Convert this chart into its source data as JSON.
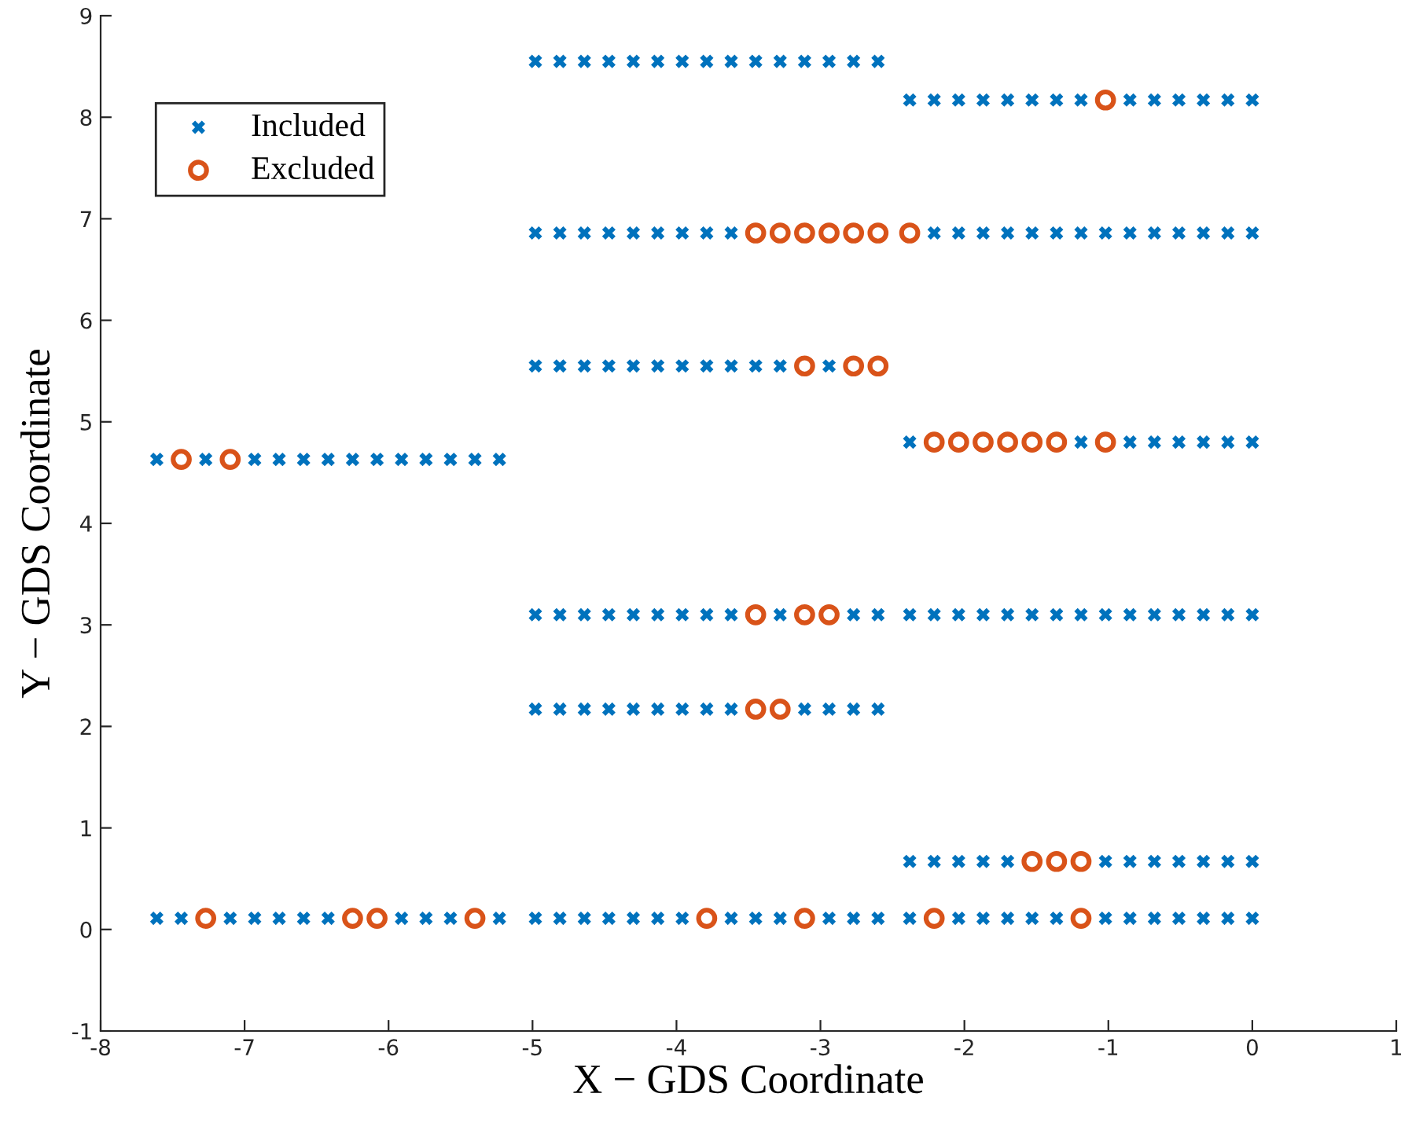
{
  "chart_data": {
    "type": "scatter",
    "xlabel": "X − GDS Coordinate",
    "ylabel": "Y − GDS Coordinate",
    "xlim": [
      -8,
      1
    ],
    "xticks": [
      -8,
      -7,
      -6,
      -5,
      -4,
      -3,
      -2,
      -1,
      0,
      1
    ],
    "ylim": [
      -1,
      9
    ],
    "yticks": [
      -1,
      0,
      1,
      2,
      3,
      4,
      5,
      6,
      7,
      8,
      9
    ],
    "grid": false,
    "legend": "top left",
    "series": [
      {
        "name": "Included",
        "color": "#0072bd",
        "marker": "cross",
        "x": [
          -4.98,
          -4.81,
          -4.64,
          -4.47,
          -4.3,
          -4.13,
          -3.96,
          -3.79,
          -3.62,
          -3.45,
          -3.28,
          -3.11,
          -2.94,
          -2.77,
          -2.6,
          -2.38,
          -2.21,
          -2.04,
          -1.87,
          -1.7,
          -1.53,
          -1.36,
          -1.19,
          -0.85,
          -0.68,
          -0.51,
          -0.34,
          -0.17,
          0.0,
          -4.98,
          -4.81,
          -4.64,
          -4.47,
          -4.3,
          -4.13,
          -3.96,
          -3.79,
          -3.62,
          -2.21,
          -2.04,
          -1.87,
          -1.7,
          -1.53,
          -1.36,
          -1.19,
          -1.02,
          -0.85,
          -0.68,
          -0.51,
          -0.34,
          -0.17,
          0.0,
          -4.98,
          -4.81,
          -4.64,
          -4.47,
          -4.3,
          -4.13,
          -3.96,
          -3.79,
          -3.62,
          -3.45,
          -3.28,
          -2.94,
          -2.38,
          -1.19,
          -0.85,
          -0.68,
          -0.51,
          -0.34,
          -0.17,
          0.0,
          -7.61,
          -7.27,
          -6.93,
          -6.76,
          -6.59,
          -6.42,
          -6.25,
          -6.08,
          -5.91,
          -5.74,
          -5.57,
          -5.4,
          -5.23,
          -4.98,
          -4.81,
          -4.64,
          -4.47,
          -4.3,
          -4.13,
          -3.96,
          -3.79,
          -3.62,
          -3.28,
          -2.77,
          -2.6,
          -2.38,
          -2.21,
          -2.04,
          -1.87,
          -1.7,
          -1.53,
          -1.36,
          -1.19,
          -1.02,
          -0.85,
          -0.68,
          -0.51,
          -0.34,
          -0.17,
          0.0,
          -4.98,
          -4.81,
          -4.64,
          -4.47,
          -4.3,
          -4.13,
          -3.96,
          -3.79,
          -3.62,
          -3.11,
          -2.94,
          -2.77,
          -2.6,
          -2.38,
          -2.21,
          -2.04,
          -1.87,
          -1.7,
          -1.02,
          -0.85,
          -0.68,
          -0.51,
          -0.34,
          -0.17,
          0.0,
          -7.61,
          -7.44,
          -7.1,
          -6.93,
          -6.76,
          -6.59,
          -6.42,
          -5.91,
          -5.74,
          -5.57,
          -5.23,
          -4.98,
          -4.81,
          -4.64,
          -4.47,
          -4.3,
          -4.13,
          -3.96,
          -3.62,
          -3.45,
          -3.28,
          -2.94,
          -2.77,
          -2.6,
          -2.38,
          -2.04,
          -1.87,
          -1.7,
          -1.53,
          -1.36,
          -1.02,
          -0.85,
          -0.68,
          -0.51,
          -0.34,
          -0.17,
          0.0
        ],
        "values": [
          8.55,
          8.55,
          8.55,
          8.55,
          8.55,
          8.55,
          8.55,
          8.55,
          8.55,
          8.55,
          8.55,
          8.55,
          8.55,
          8.55,
          8.55,
          8.17,
          8.17,
          8.17,
          8.17,
          8.17,
          8.17,
          8.17,
          8.17,
          8.17,
          8.17,
          8.17,
          8.17,
          8.17,
          8.17,
          6.86,
          6.86,
          6.86,
          6.86,
          6.86,
          6.86,
          6.86,
          6.86,
          6.86,
          6.86,
          6.86,
          6.86,
          6.86,
          6.86,
          6.86,
          6.86,
          6.86,
          6.86,
          6.86,
          6.86,
          6.86,
          6.86,
          6.86,
          5.55,
          5.55,
          5.55,
          5.55,
          5.55,
          5.55,
          5.55,
          5.55,
          5.55,
          5.55,
          5.55,
          5.55,
          4.8,
          4.8,
          4.8,
          4.8,
          4.8,
          4.8,
          4.8,
          4.8,
          4.63,
          4.63,
          4.63,
          4.63,
          4.63,
          4.63,
          4.63,
          4.63,
          4.63,
          4.63,
          4.63,
          4.63,
          4.63,
          3.1,
          3.1,
          3.1,
          3.1,
          3.1,
          3.1,
          3.1,
          3.1,
          3.1,
          3.1,
          3.1,
          3.1,
          3.1,
          3.1,
          3.1,
          3.1,
          3.1,
          3.1,
          3.1,
          3.1,
          3.1,
          3.1,
          3.1,
          3.1,
          3.1,
          3.1,
          3.1,
          2.17,
          2.17,
          2.17,
          2.17,
          2.17,
          2.17,
          2.17,
          2.17,
          2.17,
          2.17,
          2.17,
          2.17,
          2.17,
          0.67,
          0.67,
          0.67,
          0.67,
          0.67,
          0.67,
          0.67,
          0.67,
          0.67,
          0.67,
          0.67,
          0.67,
          0.11,
          0.11,
          0.11,
          0.11,
          0.11,
          0.11,
          0.11,
          0.11,
          0.11,
          0.11,
          0.11,
          0.11,
          0.11,
          0.11,
          0.11,
          0.11,
          0.11,
          0.11,
          0.11,
          0.11,
          0.11,
          0.11,
          0.11,
          0.11,
          0.11,
          0.11,
          0.11,
          0.11,
          0.11,
          0.11,
          0.11,
          0.11,
          0.11,
          0.11,
          0.11,
          0.11,
          0.11
        ]
      },
      {
        "name": "Excluded",
        "color": "#d95319",
        "marker": "circle",
        "x": [
          -1.02,
          -3.45,
          -3.28,
          -3.11,
          -2.94,
          -2.77,
          -2.6,
          -2.38,
          -3.11,
          -2.77,
          -2.6,
          -2.21,
          -2.04,
          -1.87,
          -1.7,
          -1.53,
          -1.36,
          -1.02,
          -7.44,
          -7.1,
          -3.45,
          -3.11,
          -2.94,
          -3.45,
          -3.28,
          -1.53,
          -1.36,
          -1.19,
          -7.27,
          -6.25,
          -6.08,
          -5.4,
          -3.79,
          -3.11,
          -2.21,
          -1.19
        ],
        "values": [
          8.17,
          6.86,
          6.86,
          6.86,
          6.86,
          6.86,
          6.86,
          6.86,
          5.55,
          5.55,
          5.55,
          4.8,
          4.8,
          4.8,
          4.8,
          4.8,
          4.8,
          4.8,
          4.63,
          4.63,
          3.1,
          3.1,
          3.1,
          2.17,
          2.17,
          0.67,
          0.67,
          0.67,
          0.11,
          0.11,
          0.11,
          0.11,
          0.11,
          0.11,
          0.11,
          0.11
        ]
      }
    ]
  }
}
